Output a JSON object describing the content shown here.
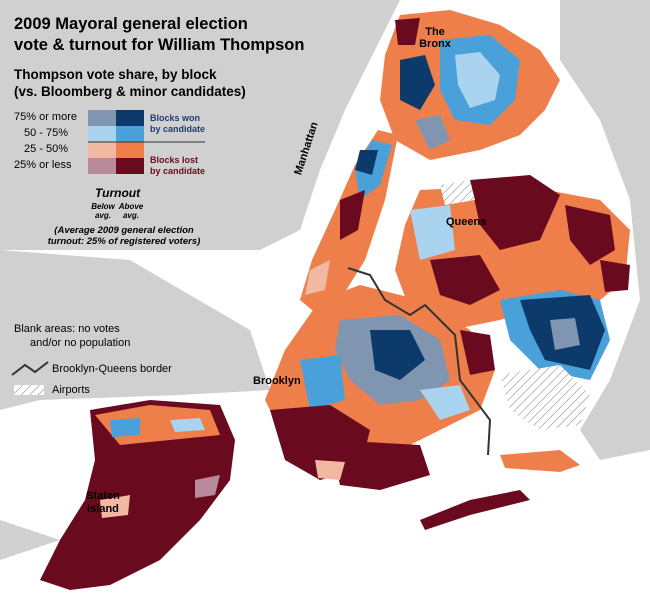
{
  "title_line1": "2009 Mayoral general election",
  "title_line2": "vote & turnout for William Thompson",
  "subtitle_line1": "Thompson vote share, by block",
  "subtitle_line2": "(vs. Bloomberg & minor candidates)",
  "legend": {
    "bins": [
      {
        "label": "75% or more",
        "below": "#7f95b0",
        "above": "#0b3a6b"
      },
      {
        "label": "50 - 75%",
        "below": "#a9d3ee",
        "above": "#4aa0d9"
      },
      {
        "label": "25 - 50%",
        "below": "#f2b8a2",
        "above": "#ef7f4a"
      },
      {
        "label": "25% or less",
        "below": "#b88a9a",
        "above": "#6a0a1f"
      }
    ],
    "won_line1": "Blocks won",
    "won_line2": "by candidate",
    "lost_line1": "Blocks lost",
    "lost_line2": "by candidate",
    "won_color": "#1e3d73",
    "lost_color": "#6a0a1f",
    "turnout_title": "Turnout",
    "below_line1": "Below",
    "below_line2": "avg.",
    "above_line1": "Above",
    "above_line2": "avg.",
    "avg_line1": "(Average 2009 general election",
    "avg_line2": "turnout: 25% of registered voters)",
    "blank_line1": "Blank areas: no votes",
    "blank_line2": "and/or no population",
    "border_label": "Brooklyn-Queens border",
    "airports_label": "Airports"
  },
  "places": {
    "bronx_line1": "The",
    "bronx_line2": "Bronx",
    "manhattan": "Manhattan",
    "queens": "Queens",
    "brooklyn": "Brooklyn",
    "staten_line1": "Staten",
    "staten_line2": "Island"
  },
  "colors": {
    "background_land": "#d0d0d0",
    "water": "#ffffff",
    "blank_area": "#ffffff"
  }
}
